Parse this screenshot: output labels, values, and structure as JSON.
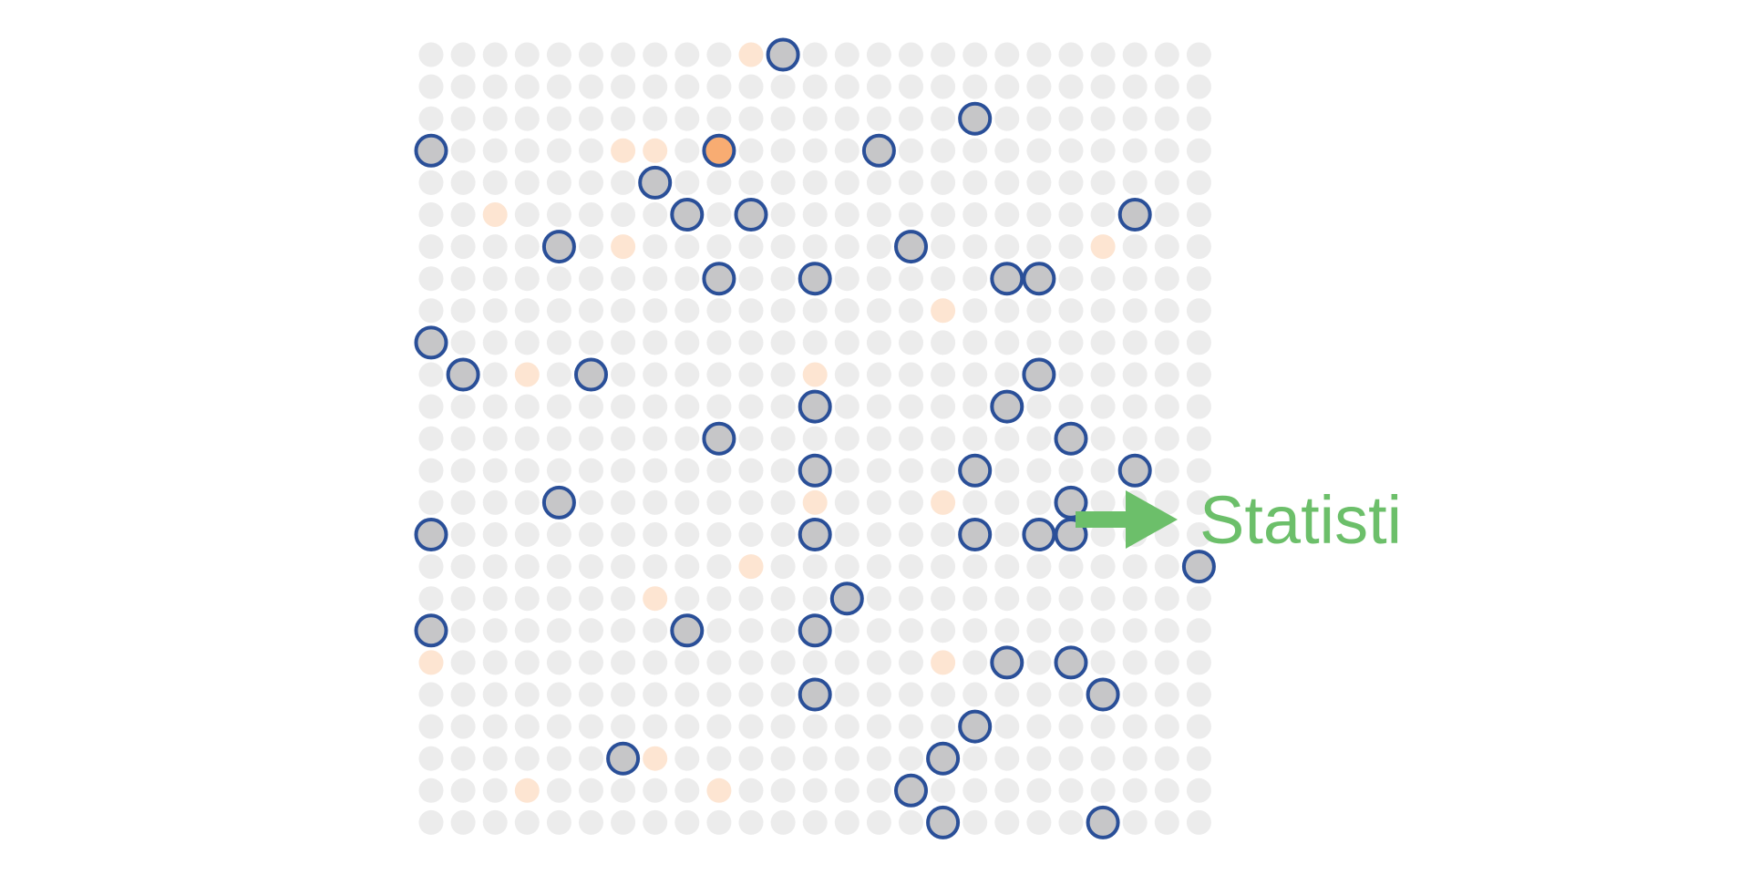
{
  "colors": {
    "background_dot": "#ececec",
    "faint_dot": "#fde5d2",
    "highlight_dot": "#f8ac72",
    "sampled_fill": "#c6c6c8",
    "sampled_stroke": "#2a4f98",
    "arrow": "#6cbf6a",
    "label": "#6cbf6a"
  },
  "grid": {
    "columns": 25,
    "rows": 25
  },
  "faint_dots": [
    [
      10,
      0
    ],
    [
      6,
      3
    ],
    [
      7,
      3
    ],
    [
      2,
      5
    ],
    [
      6,
      6
    ],
    [
      21,
      6
    ],
    [
      16,
      8
    ],
    [
      3,
      10
    ],
    [
      12,
      10
    ],
    [
      12,
      14
    ],
    [
      16,
      14
    ],
    [
      10,
      16
    ],
    [
      7,
      17
    ],
    [
      0,
      19
    ],
    [
      16,
      19
    ],
    [
      7,
      22
    ],
    [
      3,
      23
    ],
    [
      9,
      23
    ]
  ],
  "highlight_dots": [
    [
      9,
      3
    ]
  ],
  "sampled_dots": [
    [
      11,
      0
    ],
    [
      17,
      2
    ],
    [
      0,
      3
    ],
    [
      14,
      3
    ],
    [
      7,
      4
    ],
    [
      8,
      5
    ],
    [
      10,
      5
    ],
    [
      22,
      5
    ],
    [
      4,
      6
    ],
    [
      15,
      6
    ],
    [
      9,
      7
    ],
    [
      12,
      7
    ],
    [
      18,
      7
    ],
    [
      19,
      7
    ],
    [
      0,
      9
    ],
    [
      1,
      10
    ],
    [
      5,
      10
    ],
    [
      19,
      10
    ],
    [
      12,
      11
    ],
    [
      18,
      11
    ],
    [
      9,
      12
    ],
    [
      20,
      12
    ],
    [
      12,
      13
    ],
    [
      17,
      13
    ],
    [
      22,
      13
    ],
    [
      4,
      14
    ],
    [
      20,
      14
    ],
    [
      0,
      15
    ],
    [
      12,
      15
    ],
    [
      17,
      15
    ],
    [
      19,
      15
    ],
    [
      20,
      15
    ],
    [
      24,
      16
    ],
    [
      13,
      17
    ],
    [
      0,
      18
    ],
    [
      8,
      18
    ],
    [
      12,
      18
    ],
    [
      18,
      19
    ],
    [
      20,
      19
    ],
    [
      12,
      20
    ],
    [
      21,
      20
    ],
    [
      17,
      21
    ],
    [
      6,
      22
    ],
    [
      16,
      22
    ],
    [
      15,
      23
    ],
    [
      16,
      24
    ],
    [
      21,
      24
    ]
  ],
  "label": {
    "text": "Statisti",
    "icon": "right-arrow-icon"
  }
}
